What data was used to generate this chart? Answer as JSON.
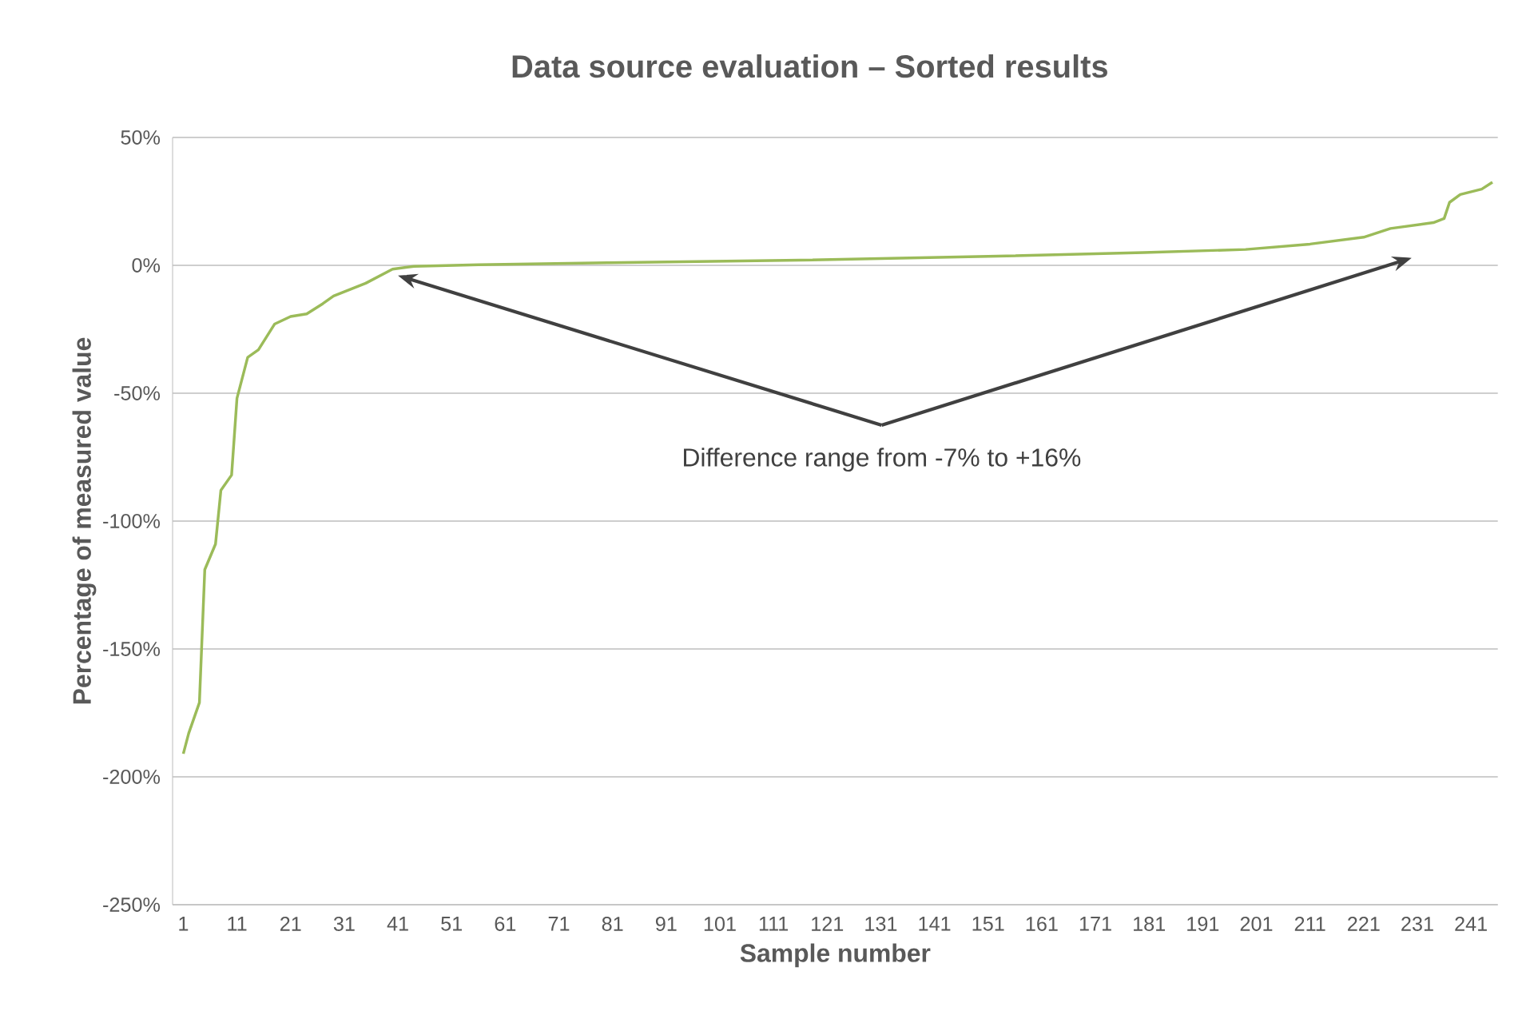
{
  "chart_data": {
    "type": "line",
    "title": "Data source evaluation – Sorted results",
    "xlabel": "Sample number",
    "ylabel": "Percentage of measured value",
    "annotations": [
      {
        "text": "Difference range from -7% to +16%",
        "x": 41,
        "y": -4
      }
    ],
    "x": [
      1,
      2,
      4,
      5,
      7,
      8,
      10,
      11,
      13,
      15,
      18,
      21,
      24,
      27,
      29,
      35,
      40,
      44,
      56,
      80,
      116,
      151,
      180,
      199,
      211,
      221,
      226,
      234,
      236,
      237,
      239,
      243,
      245
    ],
    "series": [
      {
        "color": "#9bbb59",
        "values": [
          -191,
          -183,
          -171,
          -119,
          -109,
          -88,
          -82,
          -52,
          -36,
          -33,
          -23,
          -20,
          -19,
          -15,
          -12,
          -7,
          -1.5,
          -0.4,
          0.2,
          1,
          2,
          3.5,
          5,
          6.2,
          8.3,
          11,
          14.4,
          16.7,
          18.3,
          24.6,
          27.7,
          29.8,
          32.5
        ]
      }
    ],
    "xlim": [
      -1,
      246
    ],
    "xticks": [
      1,
      11,
      21,
      31,
      41,
      51,
      61,
      71,
      81,
      91,
      101,
      111,
      121,
      131,
      141,
      151,
      161,
      171,
      181,
      191,
      201,
      211,
      221,
      231,
      241
    ],
    "ylim": [
      -250,
      50
    ],
    "yticks": [
      {
        "value": -250,
        "label": "-250%"
      },
      {
        "value": -200,
        "label": "-200%"
      },
      {
        "value": -150,
        "label": "-150%"
      },
      {
        "value": -100,
        "label": "-100%"
      },
      {
        "value": -50,
        "label": "-50%"
      },
      {
        "value": 0,
        "label": "0%"
      },
      {
        "value": 50,
        "label": "50%"
      }
    ],
    "grid": "y",
    "legend": false,
    "marker": "none",
    "line_style": "solid"
  }
}
